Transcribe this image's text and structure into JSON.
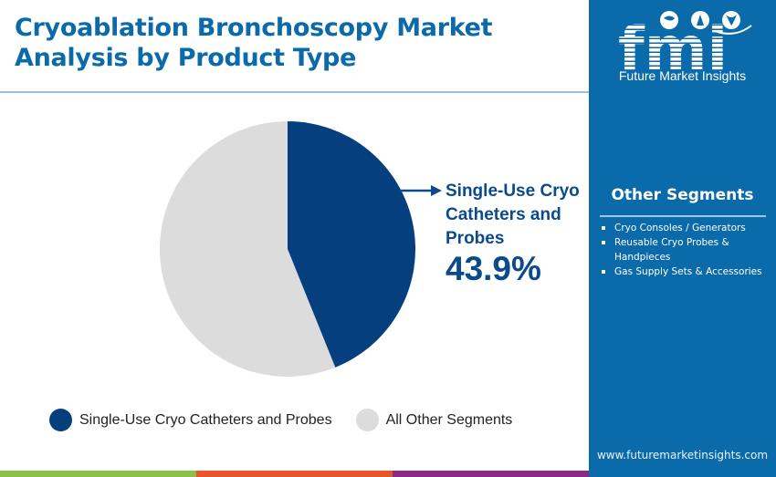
{
  "header": {
    "title_line1": "Cryoablation Bronchoscopy Market",
    "title_line2": "Analysis by Product Type"
  },
  "chart_data": {
    "type": "pie",
    "title": "Cryoablation Bronchoscopy Market Analysis by Product Type",
    "slices": [
      {
        "label": "Single-Use Cryo Catheters and Probes",
        "value": 43.9,
        "color": "#063f7e"
      },
      {
        "label": "All Other Segments",
        "value": 56.1,
        "color": "#dcdcdc"
      }
    ],
    "start_angle": "12 o'clock, clockwise",
    "legend_position": "bottom"
  },
  "callout": {
    "label": "Single-Use Cryo Catheters and Probes",
    "label_lines": [
      "Single-Use Cryo",
      "Catheters and",
      "Probes"
    ],
    "value": "43.9%"
  },
  "legend": [
    {
      "label": "Single-Use Cryo Catheters and Probes",
      "color": "#063f7e"
    },
    {
      "label": "All Other Segments",
      "color": "#dcdcdc"
    }
  ],
  "sidebar": {
    "brand_short": "fmi",
    "brand_name": "Future Market Insights",
    "other_segments_title": "Other Segments",
    "other_segments": [
      "Cryo Consoles / Generators",
      "Reusable Cryo Probes & Handpieces",
      "Gas Supply Sets & Accessories"
    ],
    "website": "www.futuremarketinsights.com"
  },
  "colors": {
    "title": "#0b6aa9",
    "panel": "#0b6aa9",
    "bar_green": "#8dc04a",
    "bar_orange": "#e6562a",
    "bar_purple": "#8a2b86"
  }
}
